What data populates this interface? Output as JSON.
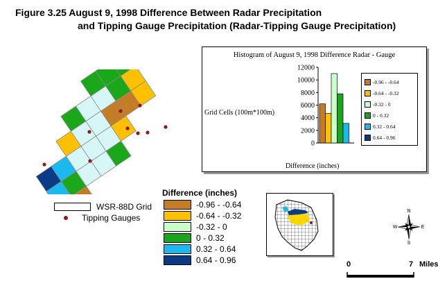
{
  "figure": {
    "title_line1": "Figure 3.25   August 9, 1998 Difference Between Radar Precipitation",
    "title_line2": "and Tipping Gauge Precipitation (Radar-Tipping Gauge Precipitation)"
  },
  "colors": {
    "c1": "#c47d26",
    "c2": "#ffc000",
    "c3": "#ccffcc",
    "c4": "#1aa81a",
    "c5": "#1cb8f0",
    "c6": "#0b3a86",
    "pale_cell": "#d7f7f7",
    "gauge_dot": "#8b1a1a"
  },
  "histogram": {
    "title": "Histogram of August 9, 1998 Difference Radar - Gauge",
    "ylabel": "Grid Cells (100m*100m)",
    "xlabel": "Difference (inches)"
  },
  "chart_data": {
    "type": "bar",
    "title": "Histogram of August 9, 1998 Difference Radar - Gauge",
    "xlabel": "Difference (inches)",
    "ylabel": "Grid Cells (100m*100m)",
    "ylim": [
      0,
      12000
    ],
    "yticks": [
      "0",
      "2000",
      "4000",
      "6000",
      "8000",
      "10000",
      "12000"
    ],
    "categories": [
      "-0.96 - -0.64",
      "-0.64 - -0.32",
      "-0.32 - 0",
      "0 - 0.32",
      "0.32 - 0.64",
      "0.64 - 0.96"
    ],
    "values": [
      6200,
      4700,
      11000,
      7800,
      3100,
      0
    ],
    "colors": [
      "#c47d26",
      "#ffc000",
      "#ccffcc",
      "#1aa81a",
      "#1cb8f0",
      "#0b3a86"
    ],
    "legend": "right"
  },
  "legend": {
    "title": "Difference (inches)",
    "items": [
      {
        "label": "-0.96 - -0.64",
        "color": "#c47d26"
      },
      {
        "label": "-0.64 - -0.32",
        "color": "#ffc000"
      },
      {
        "label": "-0.32 - 0",
        "color": "#ccffcc"
      },
      {
        "label": "0 - 0.32",
        "color": "#1aa81a"
      },
      {
        "label": "0.32 - 0.64",
        "color": "#1cb8f0"
      },
      {
        "label": "0.64 - 0.96",
        "color": "#0b3a86"
      }
    ],
    "grid_label": "WSR-88D Grid",
    "gauge_label": "Tipping Gauges"
  },
  "compass": {
    "n": "N",
    "s": "S",
    "e": "E",
    "w": "W"
  },
  "scalebar": {
    "start": "0",
    "end": "7",
    "unit": "Miles"
  }
}
